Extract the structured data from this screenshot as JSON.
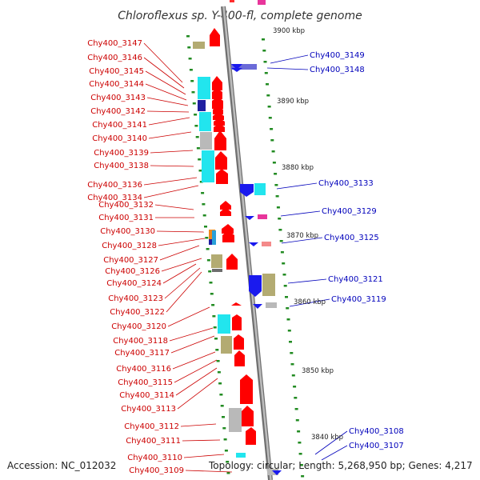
{
  "title": "Chloroflexus sp. Y-400-fl, complete genome",
  "footer": {
    "accession": "Accession: NC_012032",
    "summary": "Topology: circular; Length: 5,268,950 bp; Genes: 4,217"
  },
  "colors": {
    "left_label": "#cc0000",
    "right_label": "#0000bb",
    "forward_gene": "#ff0000",
    "reverse_gene": "#1a1aee",
    "tick": "#228b22",
    "backbone": "#909090"
  },
  "scale_labels": [
    "3900 kbp",
    "3890 kbp",
    "3880 kbp",
    "3870 kbp",
    "3860 kbp",
    "3850 kbp",
    "3840 kbp"
  ],
  "left_labels": [
    "Chy400_3147",
    "Chy400_3146",
    "Chy400_3145",
    "Chy400_3144",
    "Chy400_3143",
    "Chy400_3142",
    "Chy400_3141",
    "Chy400_3140",
    "Chy400_3139",
    "Chy400_3138",
    "Chy400_3136",
    "Chy400_3134",
    "Chy400_3132",
    "Chy400_3131",
    "Chy400_3130",
    "Chy400_3128",
    "Chy400_3127",
    "Chy400_3126",
    "Chy400_3124",
    "Chy400_3123",
    "Chy400_3122",
    "Chy400_3120",
    "Chy400_3118",
    "Chy400_3117",
    "Chy400_3116",
    "Chy400_3115",
    "Chy400_3114",
    "Chy400_3113",
    "Chy400_3112",
    "Chy400_3111",
    "Chy400_3110",
    "Chy400_3109"
  ],
  "right_labels": [
    "Chy400_3149",
    "Chy400_3148",
    "Chy400_3133",
    "Chy400_3129",
    "Chy400_3125",
    "Chy400_3121",
    "Chy400_3119",
    "Chy400_3108",
    "Chy400_3107"
  ]
}
